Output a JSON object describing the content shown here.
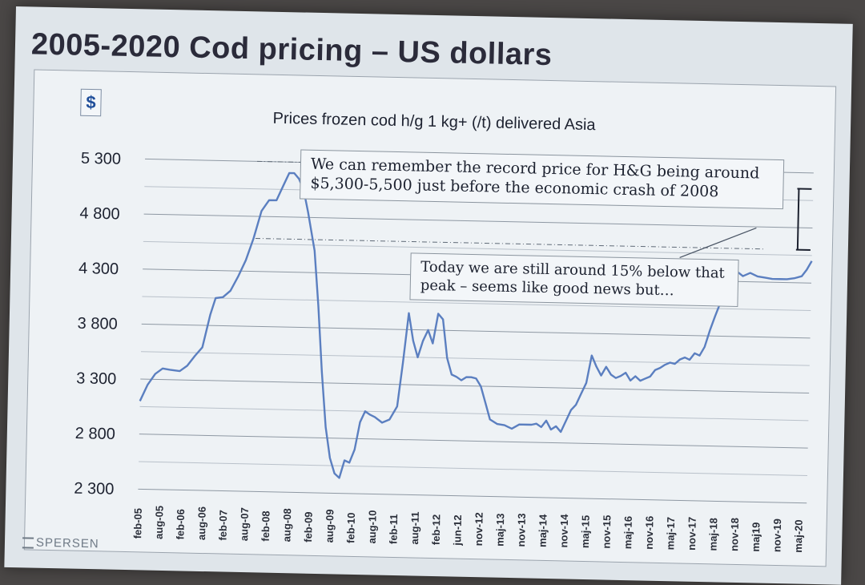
{
  "slide": {
    "title": "2005-2020 Cod pricing – US dollars",
    "currency_symbol": "$",
    "callout_1": "We can remember the record price for H&G being around $5,300-5,500 just before the economic crash of 2008",
    "callout_2": "Today we are still around 15% below that peak – seems like good news but…",
    "logo_text": "SPERSEN"
  },
  "chart_data": {
    "type": "line",
    "title": "Prices frozen cod h/g 1 kg+ (/t) delivered Asia",
    "xlabel": "",
    "ylabel": "",
    "ylim": [
      2300,
      5300
    ],
    "yticks": [
      {
        "value": 5300,
        "label": "5 300"
      },
      {
        "value": 4800,
        "label": "4 800"
      },
      {
        "value": 4300,
        "label": "4 300"
      },
      {
        "value": 3800,
        "label": "3 800"
      },
      {
        "value": 3300,
        "label": "3 300"
      },
      {
        "value": 2800,
        "label": "2 800"
      },
      {
        "value": 2300,
        "label": "2 300"
      }
    ],
    "minor_gridlines": [
      5050,
      4550,
      4050,
      3550,
      3050,
      2550
    ],
    "reference_lines": [
      5300,
      4600
    ],
    "x_tick_labels": [
      "feb-05",
      "aug-05",
      "feb-06",
      "aug-06",
      "feb-07",
      "aug-07",
      "feb-08",
      "aug-08",
      "feb-09",
      "aug-09",
      "feb-10",
      "aug-10",
      "feb-11",
      "aug-11",
      "feb-12",
      "jun-12",
      "nov-12",
      "maj-13",
      "nov-13",
      "maj-14",
      "nov-14",
      "maj-15",
      "nov-15",
      "maj-16",
      "nov-16",
      "maj-17",
      "nov-17",
      "maj-18",
      "nov-18",
      "maj19",
      "nov-19",
      "maj-20"
    ],
    "series": [
      {
        "color": "#5b7fc0",
        "points": [
          [
            0,
            3100
          ],
          [
            0.3,
            3250
          ],
          [
            0.6,
            3350
          ],
          [
            0.9,
            3400
          ],
          [
            1.2,
            3390
          ],
          [
            1.6,
            3380
          ],
          [
            1.9,
            3430
          ],
          [
            2.2,
            3520
          ],
          [
            2.5,
            3600
          ],
          [
            2.8,
            3900
          ],
          [
            3.0,
            4050
          ],
          [
            3.3,
            4060
          ],
          [
            3.6,
            4120
          ],
          [
            3.9,
            4250
          ],
          [
            4.2,
            4400
          ],
          [
            4.5,
            4600
          ],
          [
            4.8,
            4850
          ],
          [
            5.1,
            4950
          ],
          [
            5.4,
            4950
          ],
          [
            5.7,
            5100
          ],
          [
            5.9,
            5200
          ],
          [
            6.1,
            5200
          ],
          [
            6.3,
            5150
          ],
          [
            6.5,
            5050
          ],
          [
            6.7,
            4850
          ],
          [
            7.0,
            4500
          ],
          [
            7.2,
            4000
          ],
          [
            7.4,
            3400
          ],
          [
            7.6,
            2900
          ],
          [
            7.8,
            2620
          ],
          [
            8.0,
            2480
          ],
          [
            8.2,
            2440
          ],
          [
            8.4,
            2600
          ],
          [
            8.6,
            2580
          ],
          [
            8.8,
            2700
          ],
          [
            9.0,
            2950
          ],
          [
            9.2,
            3050
          ],
          [
            9.4,
            3020
          ],
          [
            9.6,
            3000
          ],
          [
            9.9,
            2950
          ],
          [
            10.2,
            2980
          ],
          [
            10.5,
            3100
          ],
          [
            10.7,
            3500
          ],
          [
            10.9,
            3950
          ],
          [
            11.1,
            3700
          ],
          [
            11.3,
            3550
          ],
          [
            11.5,
            3700
          ],
          [
            11.7,
            3800
          ],
          [
            11.9,
            3680
          ],
          [
            12.1,
            3950
          ],
          [
            12.3,
            3900
          ],
          [
            12.5,
            3550
          ],
          [
            12.7,
            3400
          ],
          [
            12.9,
            3380
          ],
          [
            13.1,
            3350
          ],
          [
            13.3,
            3380
          ],
          [
            13.5,
            3380
          ],
          [
            13.7,
            3370
          ],
          [
            13.9,
            3300
          ],
          [
            14.1,
            3150
          ],
          [
            14.3,
            3000
          ],
          [
            14.6,
            2960
          ],
          [
            14.9,
            2950
          ],
          [
            15.2,
            2920
          ],
          [
            15.5,
            2960
          ],
          [
            15.8,
            2960
          ],
          [
            16.0,
            2960
          ],
          [
            16.2,
            2970
          ],
          [
            16.4,
            2940
          ],
          [
            16.6,
            3000
          ],
          [
            16.8,
            2920
          ],
          [
            17.0,
            2950
          ],
          [
            17.2,
            2900
          ],
          [
            17.4,
            3000
          ],
          [
            17.6,
            3100
          ],
          [
            17.8,
            3150
          ],
          [
            18.0,
            3250
          ],
          [
            18.2,
            3350
          ],
          [
            18.4,
            3600
          ],
          [
            18.6,
            3500
          ],
          [
            18.8,
            3420
          ],
          [
            19.0,
            3500
          ],
          [
            19.2,
            3430
          ],
          [
            19.4,
            3400
          ],
          [
            19.6,
            3420
          ],
          [
            19.8,
            3450
          ],
          [
            20.0,
            3380
          ],
          [
            20.2,
            3420
          ],
          [
            20.4,
            3380
          ],
          [
            20.6,
            3400
          ],
          [
            20.8,
            3420
          ],
          [
            21.0,
            3480
          ],
          [
            21.2,
            3500
          ],
          [
            21.4,
            3530
          ],
          [
            21.6,
            3550
          ],
          [
            21.8,
            3540
          ],
          [
            22.0,
            3580
          ],
          [
            22.2,
            3600
          ],
          [
            22.4,
            3580
          ],
          [
            22.6,
            3640
          ],
          [
            22.8,
            3620
          ],
          [
            23.0,
            3700
          ],
          [
            23.2,
            3850
          ],
          [
            23.4,
            3980
          ],
          [
            23.6,
            4100
          ],
          [
            23.8,
            4250
          ],
          [
            24.0,
            4380
          ],
          [
            24.2,
            4400
          ],
          [
            24.5,
            4350
          ],
          [
            24.8,
            4380
          ],
          [
            25.1,
            4350
          ],
          [
            25.4,
            4340
          ],
          [
            25.7,
            4330
          ],
          [
            26.0,
            4330
          ],
          [
            26.3,
            4330
          ],
          [
            26.6,
            4340
          ],
          [
            26.9,
            4360
          ],
          [
            27.1,
            4420
          ],
          [
            27.3,
            4500
          ]
        ]
      }
    ],
    "x_domain": [
      0,
      27.3
    ],
    "grid": true,
    "legend": "none"
  }
}
